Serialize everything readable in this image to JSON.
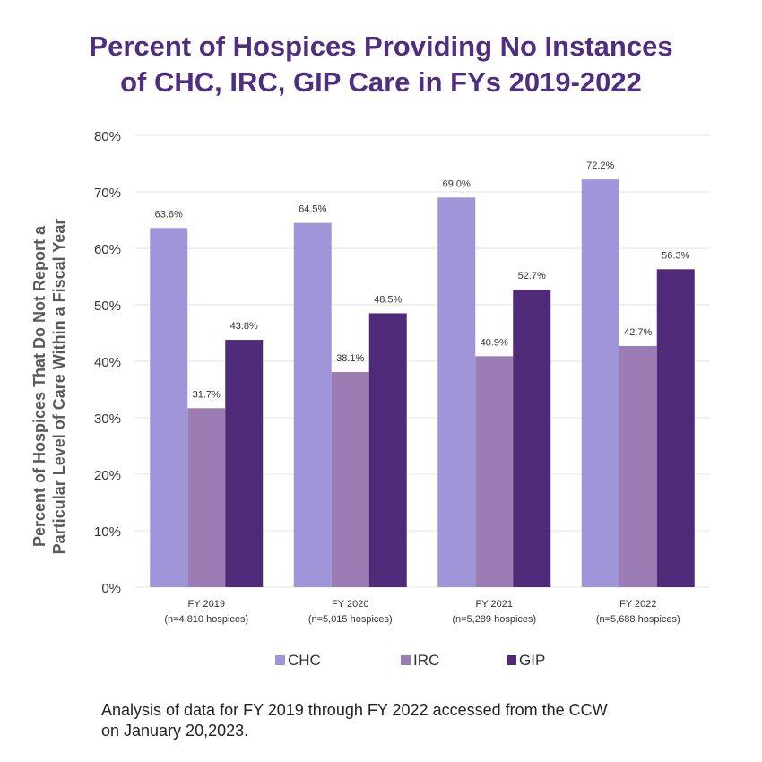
{
  "title_lines": [
    "Percent of Hospices Providing No Instances",
    "of CHC, IRC, GIP Care in FYs 2019-2022"
  ],
  "chart_data": {
    "type": "bar",
    "title": "Percent of Hospices Providing No Instances of CHC, IRC, GIP Care in FYs 2019-2022",
    "categories": [
      [
        "FY 2019",
        "(n=4,810 hospices)"
      ],
      [
        "FY 2020",
        "(n=5,015 hospices)"
      ],
      [
        "FY 2021",
        "(n=5,289 hospices)"
      ],
      [
        "FY 2022",
        "(n=5,688 hospices)"
      ]
    ],
    "series": [
      {
        "name": "CHC",
        "color": "#a095d9",
        "values": [
          63.6,
          64.5,
          69.0,
          72.2
        ],
        "labels": [
          "63.6%",
          "64.5%",
          "69.0%",
          "72.2%"
        ]
      },
      {
        "name": "IRC",
        "color": "#9b7db3",
        "values": [
          31.7,
          38.1,
          40.9,
          42.7
        ],
        "labels": [
          "31.7%",
          "38.1%",
          "40.9%",
          "42.7%"
        ]
      },
      {
        "name": "GIP",
        "color": "#4f2a78",
        "values": [
          43.8,
          48.5,
          52.7,
          56.3
        ],
        "labels": [
          "43.8%",
          "48.5%",
          "52.7%",
          "56.3%"
        ]
      }
    ],
    "ylabel_lines": [
      "Percent of Hospices That Do Not Report a",
      "Particular Level of Care Within a Fiscal Year"
    ],
    "ylim": [
      0,
      80
    ],
    "yticks": [
      0,
      10,
      20,
      30,
      40,
      50,
      60,
      70,
      80
    ],
    "ytick_labels": [
      "0%",
      "10%",
      "20%",
      "30%",
      "40%",
      "50%",
      "60%",
      "70%",
      "80%"
    ],
    "grid": true,
    "legend": "bottom-center"
  },
  "footnote_lines": [
    "Analysis of data for FY 2019 through FY 2022 accessed from the CCW",
    "on January 20,2023."
  ],
  "colors": {
    "title": "#4f2d7f",
    "grid": "#e3e3e3",
    "axis_text": "#333333"
  }
}
